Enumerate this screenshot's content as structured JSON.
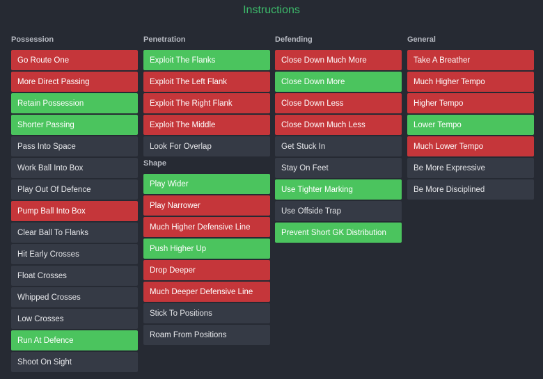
{
  "title": "Instructions",
  "colors": {
    "red": "#c5363a",
    "green": "#4bc45e",
    "neutral": "#353a45",
    "title": "#3dbb6b"
  },
  "possession": {
    "heading": "Possession",
    "items": [
      {
        "label": "Go Route One",
        "state": "red"
      },
      {
        "label": "More Direct Passing",
        "state": "red"
      },
      {
        "label": "Retain Possession",
        "state": "green"
      },
      {
        "label": "Shorter Passing",
        "state": "green"
      },
      {
        "label": "Pass Into Space",
        "state": "neutral"
      },
      {
        "label": "Work Ball Into Box",
        "state": "neutral"
      },
      {
        "label": "Play Out Of Defence",
        "state": "neutral"
      },
      {
        "label": "Pump Ball Into Box",
        "state": "red"
      },
      {
        "label": "Clear Ball To Flanks",
        "state": "neutral"
      },
      {
        "label": "Hit Early Crosses",
        "state": "neutral"
      },
      {
        "label": "Float Crosses",
        "state": "neutral"
      },
      {
        "label": "Whipped Crosses",
        "state": "neutral"
      },
      {
        "label": "Low Crosses",
        "state": "neutral"
      },
      {
        "label": "Run At Defence",
        "state": "green"
      },
      {
        "label": "Shoot On Sight",
        "state": "neutral"
      }
    ]
  },
  "penetration": {
    "heading": "Penetration",
    "items": [
      {
        "label": "Exploit The Flanks",
        "state": "green"
      },
      {
        "label": "Exploit The Left Flank",
        "state": "red"
      },
      {
        "label": "Exploit The Right Flank",
        "state": "red"
      },
      {
        "label": "Exploit The Middle",
        "state": "red"
      },
      {
        "label": "Look For Overlap",
        "state": "neutral"
      }
    ]
  },
  "shape": {
    "heading": "Shape",
    "items": [
      {
        "label": "Play Wider",
        "state": "green"
      },
      {
        "label": "Play Narrower",
        "state": "red"
      },
      {
        "label": "Much Higher Defensive Line",
        "state": "red"
      },
      {
        "label": "Push Higher Up",
        "state": "green"
      },
      {
        "label": "Drop Deeper",
        "state": "red"
      },
      {
        "label": "Much Deeper Defensive Line",
        "state": "red"
      },
      {
        "label": "Stick To Positions",
        "state": "neutral"
      },
      {
        "label": "Roam From Positions",
        "state": "neutral"
      }
    ]
  },
  "defending": {
    "heading": "Defending",
    "items": [
      {
        "label": "Close Down Much More",
        "state": "red"
      },
      {
        "label": "Close Down More",
        "state": "green"
      },
      {
        "label": "Close Down Less",
        "state": "red"
      },
      {
        "label": "Close Down Much Less",
        "state": "red"
      },
      {
        "label": "Get Stuck In",
        "state": "neutral"
      },
      {
        "label": "Stay On Feet",
        "state": "neutral"
      },
      {
        "label": "Use Tighter Marking",
        "state": "green"
      },
      {
        "label": "Use Offside Trap",
        "state": "neutral"
      },
      {
        "label": "Prevent Short GK Distribution",
        "state": "green"
      }
    ]
  },
  "general": {
    "heading": "General",
    "items": [
      {
        "label": "Take A Breather",
        "state": "red"
      },
      {
        "label": "Much Higher Tempo",
        "state": "red"
      },
      {
        "label": "Higher Tempo",
        "state": "red"
      },
      {
        "label": "Lower Tempo",
        "state": "green"
      },
      {
        "label": "Much Lower Tempo",
        "state": "red"
      },
      {
        "label": "Be More Expressive",
        "state": "neutral"
      },
      {
        "label": "Be More Disciplined",
        "state": "neutral"
      }
    ]
  }
}
